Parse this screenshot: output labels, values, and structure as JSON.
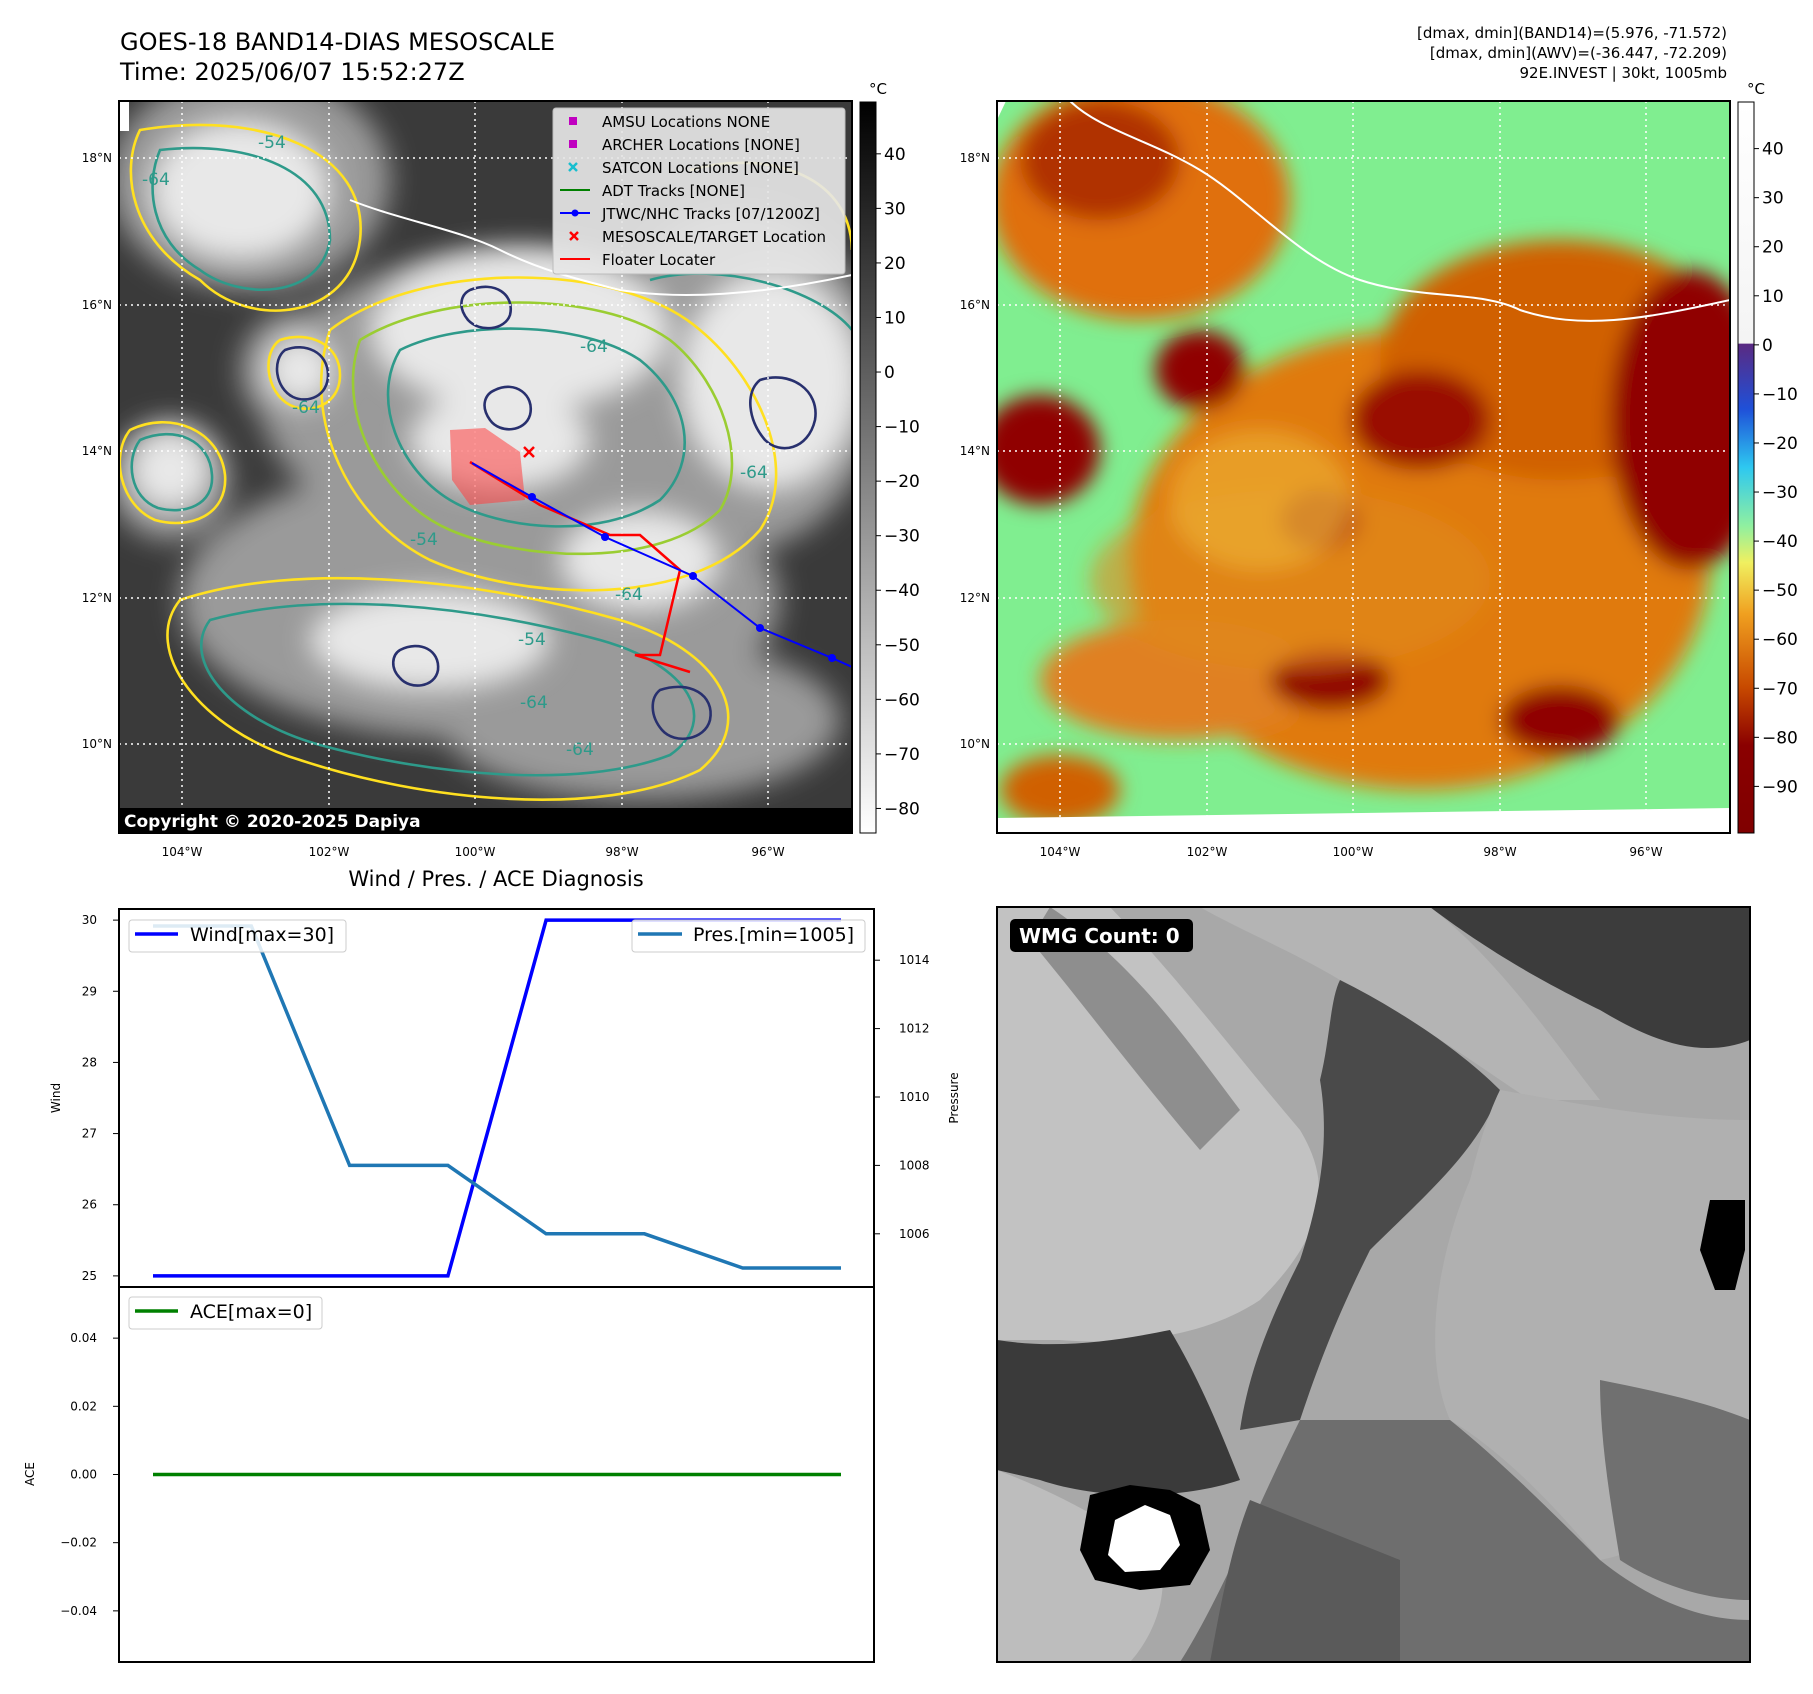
{
  "header": {
    "title_line1": "GOES-18 BAND14-DIAS MESOSCALE",
    "title_line2": "Time: 2025/06/07 15:52:27Z",
    "info_line1": "[dmax, dmin](BAND14)=(5.976, -71.572)",
    "info_line2": "[dmax, dmin](AWV)=(-36.447, -72.209)",
    "info_line3": "92E.INVEST | 30kt, 1005mb"
  },
  "colors": {
    "wind": "#0000ff",
    "pressure": "#1f77b4",
    "ace": "#008000",
    "track_jtwc": "#0000ff",
    "floater": "#ff0000",
    "amsu": "#c000c0",
    "satcon": "#17becf",
    "contour_yellow": "#ffe020",
    "contour_green": "#9acd32",
    "contour_teal": "#2e9a8a",
    "contour_navy": "#28306e"
  },
  "chart_data": [
    {
      "type": "map",
      "panel": "band14-grayscale",
      "colorbar_unit": "°C",
      "colorbar_ticks": [
        "40",
        "30",
        "20",
        "10",
        "0",
        "−10",
        "−20",
        "−30",
        "−40",
        "−50",
        "−60",
        "−70",
        "−80"
      ],
      "lon_ticks": [
        "104°W",
        "102°W",
        "100°W",
        "98°W",
        "96°W"
      ],
      "lat_ticks": [
        "18°N",
        "16°N",
        "14°N",
        "12°N",
        "10°N"
      ],
      "contour_labels": [
        "-54",
        "-64",
        "-64",
        "-64",
        "-64",
        "-54",
        "-64",
        "-54",
        "-64",
        "-64"
      ],
      "legend": [
        {
          "label": "AMSU Locations NONE",
          "marker": "square",
          "color": "#c000c0"
        },
        {
          "label": "ARCHER Locations [NONE]",
          "marker": "square",
          "color": "#c000c0"
        },
        {
          "label": "SATCON Locations [NONE]",
          "marker": "x",
          "color": "#17becf"
        },
        {
          "label": "ADT Tracks [NONE]",
          "marker": "line",
          "color": "#008000"
        },
        {
          "label": "JTWC/NHC Tracks [07/1200Z]",
          "marker": "line-dot",
          "color": "#0000ff"
        },
        {
          "label": "MESOSCALE/TARGET Location",
          "marker": "x",
          "color": "#ff0000"
        },
        {
          "label": "Floater Locater",
          "marker": "line",
          "color": "#ff0000"
        }
      ],
      "copyright": "Copyright © 2020-2025 Dapiya"
    },
    {
      "type": "map",
      "panel": "awv-color",
      "colorbar_unit": "°C",
      "colorbar_ticks": [
        "40",
        "30",
        "20",
        "10",
        "0",
        "−10",
        "−20",
        "−30",
        "−40",
        "−50",
        "−60",
        "−70",
        "−80",
        "−90"
      ],
      "lon_ticks": [
        "104°W",
        "102°W",
        "100°W",
        "98°W",
        "96°W"
      ],
      "lat_ticks": [
        "18°N",
        "16°N",
        "14°N",
        "12°N",
        "10°N"
      ]
    },
    {
      "type": "line",
      "title": "Wind / Pres. / ACE Diagnosis",
      "x": [
        0,
        1,
        2,
        3,
        4,
        5,
        6,
        7
      ],
      "series": [
        {
          "name": "Wind[max=30]",
          "axis": "Wind",
          "values": [
            25,
            25,
            25,
            25,
            30,
            30,
            30,
            30
          ]
        },
        {
          "name": "Pres.[min=1005]",
          "axis": "Pressure",
          "values": [
            1015,
            1015,
            1008,
            1008,
            1006,
            1006,
            1005,
            1005
          ]
        }
      ],
      "wind_ylabel": "Wind",
      "wind_ylim": [
        24.9,
        30.1
      ],
      "wind_ticks": [
        25,
        26,
        27,
        28,
        29,
        30
      ],
      "pressure_ylabel": "Pressure",
      "pressure_ylim": [
        1005,
        1015
      ],
      "pressure_ticks": [
        1006,
        1008,
        1010,
        1012,
        1014
      ]
    },
    {
      "type": "line",
      "x": [
        0,
        1,
        2,
        3,
        4,
        5,
        6,
        7
      ],
      "series": [
        {
          "name": "ACE[max=0]",
          "values": [
            0,
            0,
            0,
            0,
            0,
            0,
            0,
            0
          ]
        }
      ],
      "ylabel": "ACE",
      "ylim": [
        -0.055,
        0.055
      ],
      "ticks": [
        "0.04",
        "0.02",
        "0.00",
        "−0.02",
        "−0.04"
      ]
    },
    {
      "type": "image",
      "panel": "wmg-grayscale",
      "label": "WMG Count: 0"
    }
  ]
}
